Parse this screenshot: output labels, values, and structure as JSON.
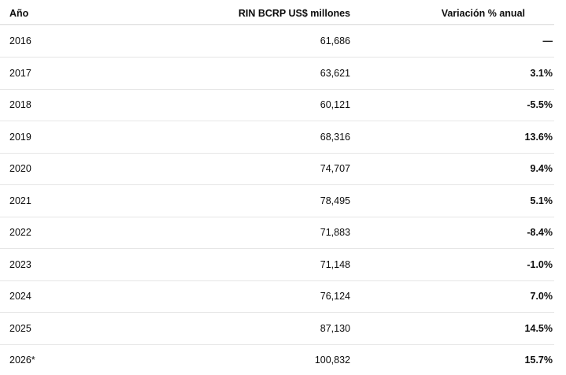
{
  "table": {
    "header": [
      "Año",
      "RIN BCRP US$ millones",
      "Variación % anual"
    ],
    "rows": [
      [
        "2016",
        "61,686",
        "—"
      ],
      [
        "2017",
        "63,621",
        "3.1%"
      ],
      [
        "2018",
        "60,121",
        "-5.5%"
      ],
      [
        "2019",
        "68,316",
        "13.6%"
      ],
      [
        "2020",
        "74,707",
        "9.4%"
      ],
      [
        "2021",
        "78,495",
        "5.1%"
      ],
      [
        "2022",
        "71,883",
        "-8.4%"
      ],
      [
        "2023",
        "71,148",
        "-1.0%"
      ],
      [
        "2024",
        "76,124",
        "7.0%"
      ],
      [
        "2025",
        "87,130",
        "14.5%"
      ],
      [
        "2026*",
        "100,832",
        "15.7%"
      ]
    ]
  }
}
